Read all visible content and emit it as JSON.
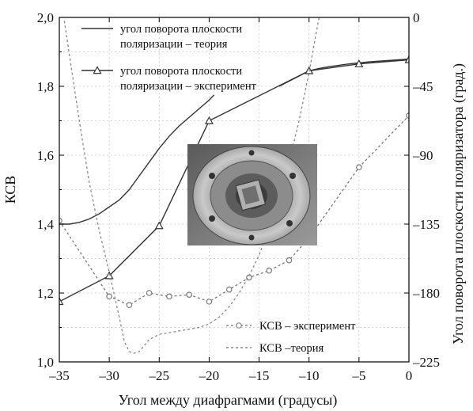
{
  "chart_data": {
    "type": "line",
    "xlabel": "Угол между диафрагмами (градусы)",
    "ylabel": "КСВ",
    "y2label": "Угол поворота плоскости поляризатора (град.)",
    "xlim": [
      -35,
      0
    ],
    "ylim": [
      1.0,
      2.0
    ],
    "y2lim": [
      -225,
      0
    ],
    "xticks": [
      "–35",
      "–30",
      "–25",
      "–20",
      "–15",
      "–10",
      "–5",
      "0"
    ],
    "xtick_values": [
      -35,
      -30,
      -25,
      -20,
      -15,
      -10,
      -5,
      0
    ],
    "yticks": [
      "1,0",
      "1,2",
      "1,4",
      "1,6",
      "1,8",
      "2,0"
    ],
    "ytick_values": [
      1.0,
      1.2,
      1.4,
      1.6,
      1.8,
      2.0
    ],
    "y2ticks": [
      "–225",
      "–180",
      "–135",
      "–90",
      "–45",
      "0"
    ],
    "y2tick_values": [
      -225,
      -180,
      -135,
      -90,
      -45,
      0
    ],
    "grid": true,
    "series": [
      {
        "name": "угол поворота плоскости поляризации – теория",
        "axis": "left",
        "style": "solid",
        "color": "#333333",
        "x": [
          -35,
          -34,
          -33,
          -32,
          -31,
          -30,
          -29,
          -28,
          -27,
          -26,
          -25,
          -24,
          -23,
          -22,
          -21,
          -20,
          -19.5
        ],
        "y": [
          1.4,
          1.4,
          1.405,
          1.415,
          1.43,
          1.45,
          1.47,
          1.5,
          1.54,
          1.58,
          1.62,
          1.655,
          1.685,
          1.71,
          1.735,
          1.76,
          1.775
        ]
      },
      {
        "name": "угол поворота плоскости поляризации – теория",
        "axis": "left",
        "style": "solid",
        "color": "#333333",
        "x": [
          -13,
          -12,
          -11,
          -10,
          -9,
          -8,
          -7,
          -6,
          -5,
          -4,
          -3,
          -2,
          -1,
          0
        ],
        "y": [
          1.8,
          1.815,
          1.83,
          1.845,
          1.852,
          1.857,
          1.861,
          1.865,
          1.868,
          1.871,
          1.873,
          1.875,
          1.877,
          1.879
        ]
      },
      {
        "name": "угол поворота плоскости поляризации – эксперимент",
        "axis": "left",
        "style": "solid-triangle",
        "color": "#333333",
        "x": [
          -35,
          -30,
          -25,
          -20,
          -10,
          -5,
          0
        ],
        "y": [
          1.175,
          1.25,
          1.395,
          1.7,
          1.845,
          1.865,
          1.877
        ]
      },
      {
        "name": "КСВ – эксперимент",
        "axis": "left",
        "style": "dotted-circle",
        "color": "#777777",
        "x": [
          -35,
          -30,
          -28,
          -26,
          -24,
          -22,
          -20,
          -18,
          -16,
          -14,
          -12,
          -10,
          -5,
          0
        ],
        "y": [
          1.41,
          1.19,
          1.165,
          1.2,
          1.19,
          1.195,
          1.175,
          1.21,
          1.245,
          1.265,
          1.295,
          1.36,
          1.565,
          1.715
        ]
      },
      {
        "name": "КСВ –теория",
        "axis": "left",
        "style": "dotted",
        "color": "#888888",
        "x": [
          -34.5,
          -33,
          -32,
          -31,
          -30,
          -29,
          -28.5,
          -28,
          -27.5,
          -27,
          -26,
          -25,
          -24,
          -23,
          -22,
          -21,
          -20,
          -19,
          -18,
          -17,
          -16,
          -15,
          -14,
          -13,
          -12,
          -11,
          -10.5,
          -10,
          -9.5,
          -9
        ],
        "y": [
          1.99,
          1.7,
          1.52,
          1.38,
          1.26,
          1.13,
          1.06,
          1.03,
          1.025,
          1.03,
          1.065,
          1.08,
          1.085,
          1.09,
          1.095,
          1.1,
          1.11,
          1.13,
          1.16,
          1.2,
          1.25,
          1.31,
          1.39,
          1.48,
          1.58,
          1.7,
          1.77,
          1.84,
          1.92,
          2.0
        ]
      }
    ],
    "legend": [
      {
        "label_lines": [
          "угол поворота плоскости",
          "поляризации – теория"
        ],
        "style": "solid"
      },
      {
        "label_lines": [
          "угол поворота плоскости",
          "поляризации – эксперимент"
        ],
        "style": "solid-triangle"
      },
      {
        "label": "КСВ – эксперимент",
        "style": "dotted-circle"
      },
      {
        "label": "КСВ –теория",
        "style": "dotted"
      }
    ],
    "legend_placement": [
      "top-left",
      "bottom-right"
    ],
    "inset_photo": "polarizer-photo"
  }
}
